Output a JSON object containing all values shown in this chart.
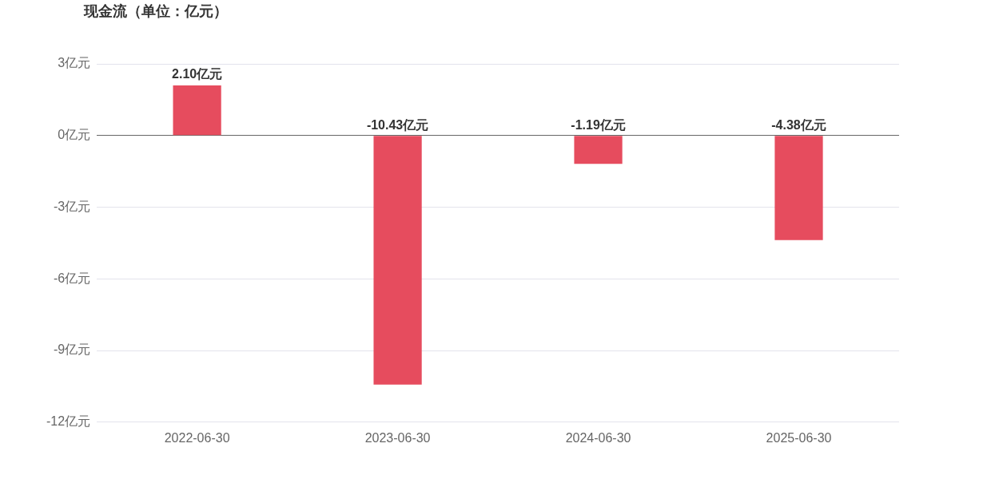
{
  "chart_data": {
    "type": "bar",
    "title": "现金流（单位：亿元）",
    "categories": [
      "2022-06-30",
      "2023-06-30",
      "2024-06-30",
      "2025-06-30"
    ],
    "values": [
      2.1,
      -10.43,
      -1.19,
      -4.38
    ],
    "value_labels": [
      "2.10亿元",
      "-10.43亿元",
      "-1.19亿元",
      "-4.38亿元"
    ],
    "color": "#e64c5e",
    "ylim": [
      -12,
      3
    ],
    "yticks": [
      {
        "value": 3,
        "label": "3亿元"
      },
      {
        "value": 0,
        "label": "0亿元"
      },
      {
        "value": -3,
        "label": "-3亿元"
      },
      {
        "value": -6,
        "label": "-6亿元"
      },
      {
        "value": -9,
        "label": "-9亿元"
      },
      {
        "value": -12,
        "label": "-12亿元"
      }
    ],
    "grid": "y"
  }
}
